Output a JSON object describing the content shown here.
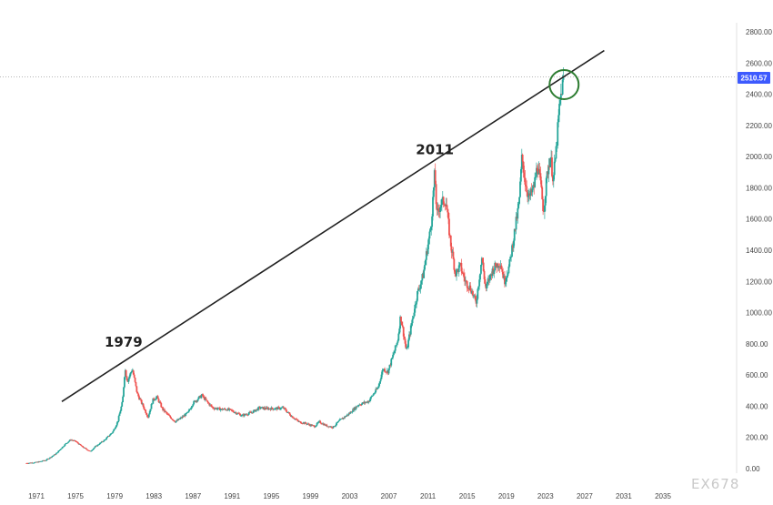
{
  "colors": {
    "up": "#26a69a",
    "down": "#ef5350",
    "trendline": "#222222",
    "highlight_circle": "#2e7d32",
    "price_tag": "#3d5afe",
    "grid": "#cccccc"
  },
  "watermark": "EX678",
  "price_tag_label": "2510.57",
  "chart_data": {
    "type": "candlestick",
    "title": "",
    "xlabel": "",
    "ylabel": "",
    "xlim": [
      1969,
      2038
    ],
    "ylim": [
      -60,
      2860
    ],
    "grid": false,
    "y_ticks": [
      "0.00",
      "200.00",
      "400.00",
      "600.00",
      "800.00",
      "1000.00",
      "1200.00",
      "1400.00",
      "1600.00",
      "1800.00",
      "2000.00",
      "2200.00",
      "2400.00",
      "2600.00",
      "2800.00"
    ],
    "x_ticks": [
      "1971",
      "1975",
      "1979",
      "1983",
      "1987",
      "1991",
      "1995",
      "1999",
      "2003",
      "2007",
      "2011",
      "2015",
      "2019",
      "2023",
      "2027",
      "2031",
      "2035"
    ],
    "current_price": 2510.57,
    "price_series": [
      [
        1970.0,
        35
      ],
      [
        1971.0,
        40
      ],
      [
        1972.0,
        55
      ],
      [
        1973.0,
        95
      ],
      [
        1974.0,
        160
      ],
      [
        1974.5,
        185
      ],
      [
        1975.0,
        175
      ],
      [
        1975.7,
        140
      ],
      [
        1976.5,
        110
      ],
      [
        1977.0,
        140
      ],
      [
        1978.0,
        185
      ],
      [
        1978.8,
        235
      ],
      [
        1979.3,
        300
      ],
      [
        1979.8,
        430
      ],
      [
        1980.05,
        640
      ],
      [
        1980.3,
        560
      ],
      [
        1980.8,
        640
      ],
      [
        1981.3,
        480
      ],
      [
        1981.9,
        400
      ],
      [
        1982.4,
        330
      ],
      [
        1982.9,
        440
      ],
      [
        1983.3,
        460
      ],
      [
        1983.9,
        380
      ],
      [
        1984.5,
        340
      ],
      [
        1985.2,
        300
      ],
      [
        1985.9,
        330
      ],
      [
        1986.5,
        360
      ],
      [
        1987.0,
        420
      ],
      [
        1987.9,
        470
      ],
      [
        1988.4,
        430
      ],
      [
        1989.0,
        390
      ],
      [
        1989.9,
        380
      ],
      [
        1990.5,
        380
      ],
      [
        1991.0,
        370
      ],
      [
        1992.0,
        340
      ],
      [
        1993.0,
        360
      ],
      [
        1993.8,
        390
      ],
      [
        1994.5,
        385
      ],
      [
        1995.5,
        385
      ],
      [
        1996.2,
        390
      ],
      [
        1997.0,
        340
      ],
      [
        1997.8,
        300
      ],
      [
        1998.5,
        290
      ],
      [
        1999.4,
        270
      ],
      [
        1999.9,
        300
      ],
      [
        2000.6,
        275
      ],
      [
        2001.3,
        265
      ],
      [
        2002.0,
        310
      ],
      [
        2002.9,
        350
      ],
      [
        2003.9,
        410
      ],
      [
        2004.9,
        430
      ],
      [
        2005.9,
        520
      ],
      [
        2006.4,
        640
      ],
      [
        2006.9,
        620
      ],
      [
        2007.9,
        820
      ],
      [
        2008.2,
        980
      ],
      [
        2008.8,
        750
      ],
      [
        2009.3,
        920
      ],
      [
        2009.9,
        1120
      ],
      [
        2010.5,
        1240
      ],
      [
        2010.9,
        1400
      ],
      [
        2011.3,
        1550
      ],
      [
        2011.7,
        1900
      ],
      [
        2011.9,
        1620
      ],
      [
        2012.3,
        1700
      ],
      [
        2012.8,
        1720
      ],
      [
        2013.3,
        1450
      ],
      [
        2013.8,
        1250
      ],
      [
        2014.3,
        1300
      ],
      [
        2014.8,
        1200
      ],
      [
        2015.4,
        1150
      ],
      [
        2015.9,
        1060
      ],
      [
        2016.5,
        1350
      ],
      [
        2016.9,
        1150
      ],
      [
        2017.5,
        1260
      ],
      [
        2017.9,
        1300
      ],
      [
        2018.4,
        1320
      ],
      [
        2018.8,
        1200
      ],
      [
        2019.3,
        1300
      ],
      [
        2019.8,
        1500
      ],
      [
        2020.3,
        1700
      ],
      [
        2020.6,
        2000
      ],
      [
        2020.9,
        1850
      ],
      [
        2021.3,
        1730
      ],
      [
        2021.8,
        1800
      ],
      [
        2022.2,
        1950
      ],
      [
        2022.5,
        1820
      ],
      [
        2022.8,
        1650
      ],
      [
        2023.2,
        1900
      ],
      [
        2023.5,
        2000
      ],
      [
        2023.8,
        1850
      ],
      [
        2024.1,
        2050
      ],
      [
        2024.4,
        2300
      ],
      [
        2024.7,
        2450
      ],
      [
        2024.9,
        2510
      ]
    ],
    "annotations": [
      {
        "label": "1979",
        "x": 1979.9,
        "y": 665
      },
      {
        "label": "2011",
        "x": 2011.7,
        "y": 1900
      }
    ],
    "trendline": {
      "from": [
        1973.6,
        430
      ],
      "to": [
        2029.0,
        2680
      ]
    },
    "highlight": {
      "x": 2024.9,
      "y": 2450,
      "label": "current-high"
    }
  }
}
